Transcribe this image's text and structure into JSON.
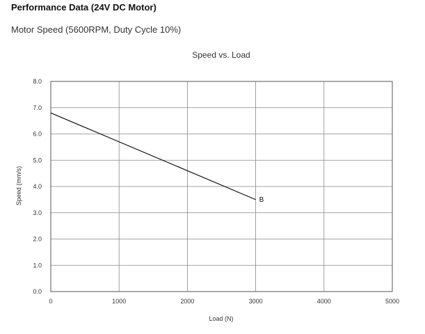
{
  "header": {
    "title": "Performance Data (24V DC Motor)",
    "subtitle": "Motor Speed (5600RPM, Duty Cycle 10%)"
  },
  "chart_data": {
    "type": "line",
    "title": "Speed vs. Load",
    "xlabel": "Load (N)",
    "ylabel": "Speed (mm/s)",
    "xlim": [
      0,
      5000
    ],
    "ylim": [
      0,
      8
    ],
    "xticks": [
      0,
      1000,
      2000,
      3000,
      4000,
      5000
    ],
    "xtick_labels": [
      "0",
      "1000",
      "2000",
      "3000",
      "4000",
      "5000"
    ],
    "yticks": [
      0,
      1,
      2,
      3,
      4,
      5,
      6,
      7,
      8
    ],
    "ytick_labels": [
      "0.0",
      "1.0",
      "2.0",
      "3.0",
      "4.0",
      "5.0",
      "6.0",
      "7.0",
      "8.0"
    ],
    "grid": true,
    "series": [
      {
        "name": "B",
        "x": [
          0,
          3000
        ],
        "y": [
          6.8,
          3.5
        ]
      }
    ],
    "colors": {
      "line": "#111111",
      "grid": "#888888",
      "frame": "#555555"
    }
  }
}
